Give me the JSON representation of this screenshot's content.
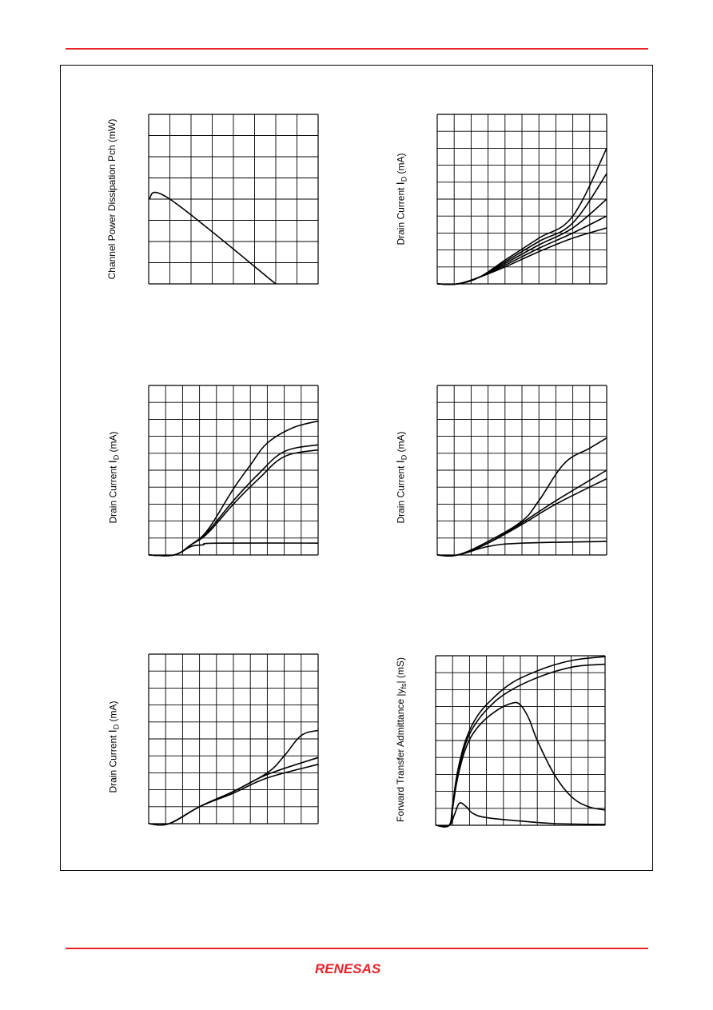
{
  "page": {
    "accent_color": "#e8232a",
    "logo_text": "RENESAS"
  },
  "chart_data": [
    {
      "id": "pch-derating",
      "type": "line",
      "ylabel": "Channel Power Dissipation Pch  (mW)",
      "xlim": [
        0,
        8
      ],
      "ylim": [
        0,
        8
      ],
      "grid": true,
      "grid_divisions": [
        8,
        8
      ],
      "series": [
        {
          "x": [
            0,
            1,
            6
          ],
          "y": [
            4,
            4,
            0
          ]
        }
      ]
    },
    {
      "id": "id-vds-1",
      "type": "line",
      "ylabel_prefix": "Drain Current  ",
      "ylabel_symbol": "I",
      "ylabel_sub": "D",
      "ylabel_suffix": " (mA)",
      "xlim": [
        0,
        10
      ],
      "ylim": [
        0,
        10
      ],
      "grid": true,
      "grid_divisions": [
        10,
        10
      ],
      "series": [
        {
          "x": [
            0,
            1.2,
            2.5,
            4,
            6,
            8,
            10
          ],
          "y": [
            0,
            0,
            0.4,
            1.0,
            1.9,
            2.7,
            3.3
          ]
        },
        {
          "x": [
            0,
            1.2,
            2.5,
            4,
            6,
            8,
            10
          ],
          "y": [
            0,
            0,
            0.4,
            1.1,
            2.1,
            3.0,
            4.0
          ]
        },
        {
          "x": [
            0,
            1.2,
            2.5,
            4,
            6,
            8,
            10
          ],
          "y": [
            0,
            0,
            0.4,
            1.2,
            2.3,
            3.3,
            5.0
          ]
        },
        {
          "x": [
            0,
            1.2,
            2.5,
            4,
            6,
            8,
            10
          ],
          "y": [
            0,
            0,
            0.4,
            1.3,
            2.5,
            3.6,
            6.5
          ]
        },
        {
          "x": [
            0,
            1.2,
            2.5,
            4,
            6,
            8,
            10
          ],
          "y": [
            0,
            0,
            0.4,
            1.4,
            2.7,
            4.0,
            8.0
          ]
        }
      ]
    },
    {
      "id": "id-vgs-1",
      "type": "line",
      "ylabel_prefix": "Drain Current  ",
      "ylabel_symbol": "I",
      "ylabel_sub": "D",
      "ylabel_suffix": " (mA)",
      "xlim": [
        0,
        10
      ],
      "ylim": [
        0,
        10
      ],
      "grid": true,
      "grid_divisions": [
        10,
        10
      ],
      "series": [
        {
          "x": [
            0,
            1.5,
            2.5,
            3.2,
            4,
            10
          ],
          "y": [
            0,
            0,
            0.5,
            0.6,
            0.7,
            0.7
          ]
        },
        {
          "x": [
            0,
            1.5,
            2.5,
            3.5,
            5,
            6.5,
            8,
            10
          ],
          "y": [
            0,
            0,
            0.6,
            1.3,
            3.0,
            4.5,
            5.8,
            6.2
          ]
        },
        {
          "x": [
            0,
            1.5,
            2.5,
            3.5,
            5,
            6.5,
            8,
            10
          ],
          "y": [
            0,
            0,
            0.6,
            1.4,
            3.2,
            4.8,
            6.1,
            6.5
          ]
        },
        {
          "x": [
            0,
            1.5,
            2.5,
            3.5,
            5,
            6,
            7,
            8.5,
            10
          ],
          "y": [
            0,
            0,
            0.6,
            1.5,
            3.9,
            5.3,
            6.6,
            7.5,
            7.9
          ]
        }
      ]
    },
    {
      "id": "id-vgs-2",
      "type": "line",
      "ylabel_prefix": "Drain Current  ",
      "ylabel_symbol": "I",
      "ylabel_sub": "D",
      "ylabel_suffix": " (mA)",
      "xlim": [
        0,
        10
      ],
      "ylim": [
        0,
        10
      ],
      "grid": true,
      "grid_divisions": [
        10,
        10
      ],
      "series": [
        {
          "x": [
            0,
            1.2,
            3,
            5,
            10
          ],
          "y": [
            0,
            0,
            0.5,
            0.7,
            0.8
          ]
        },
        {
          "x": [
            0,
            1.2,
            3,
            5,
            7,
            10
          ],
          "y": [
            0,
            0,
            0.7,
            1.8,
            3.0,
            4.5
          ]
        },
        {
          "x": [
            0,
            1.2,
            3,
            5,
            7,
            10
          ],
          "y": [
            0,
            0,
            0.7,
            1.9,
            3.2,
            5.0
          ]
        },
        {
          "x": [
            0,
            1.2,
            3,
            5,
            6,
            7.5,
            9,
            10
          ],
          "y": [
            0,
            0,
            0.8,
            2.0,
            3.2,
            5.4,
            6.3,
            6.9
          ]
        }
      ]
    },
    {
      "id": "id-vds-2",
      "type": "line",
      "ylabel_prefix": "Drain Current  ",
      "ylabel_symbol": "I",
      "ylabel_sub": "D",
      "ylabel_suffix": "  (mA)",
      "xlim": [
        0,
        10
      ],
      "ylim": [
        0,
        10
      ],
      "grid": true,
      "grid_divisions": [
        10,
        10
      ],
      "series": [
        {
          "x": [
            0,
            1.2,
            3,
            5,
            7,
            10
          ],
          "y": [
            0,
            0,
            1.0,
            1.8,
            2.7,
            3.5
          ]
        },
        {
          "x": [
            0,
            1.2,
            3,
            5,
            7,
            10
          ],
          "y": [
            0,
            0,
            1.0,
            1.9,
            2.9,
            3.9
          ]
        },
        {
          "x": [
            0,
            1.2,
            3,
            5,
            7,
            8,
            9,
            10
          ],
          "y": [
            0,
            0,
            1.0,
            1.9,
            3.0,
            4.0,
            5.2,
            5.5
          ]
        }
      ]
    },
    {
      "id": "yfs-vgs",
      "type": "line",
      "ylabel": "Forward Transfer Admittance |y",
      "ylabel_sub": "fs",
      "ylabel_suffix": "| (mS)",
      "xlim": [
        0,
        10
      ],
      "ylim": [
        0,
        10
      ],
      "grid": true,
      "grid_divisions": [
        10,
        10
      ],
      "series": [
        {
          "x": [
            0,
            0.8,
            1.1,
            1.4,
            1.8,
            2.2,
            3,
            5,
            7,
            10
          ],
          "y": [
            0,
            0,
            0.6,
            1.3,
            1.1,
            0.7,
            0.45,
            0.25,
            0.1,
            0.05
          ]
        },
        {
          "x": [
            0,
            0.8,
            1.0,
            1.3,
            1.8,
            2.5,
            3.5,
            4.5,
            5,
            5.5,
            6,
            7,
            8,
            9,
            10
          ],
          "y": [
            0,
            0,
            1.0,
            2.8,
            4.6,
            5.8,
            6.7,
            7.2,
            7.1,
            6.3,
            5.0,
            3.0,
            1.7,
            1.1,
            0.9
          ]
        },
        {
          "x": [
            0,
            0.8,
            1.0,
            1.3,
            1.8,
            2.5,
            3.5,
            4.5,
            5.5,
            6.5,
            7.5,
            8.5,
            10
          ],
          "y": [
            0,
            0,
            1.1,
            3.0,
            4.9,
            6.2,
            7.3,
            8.0,
            8.5,
            8.9,
            9.2,
            9.4,
            9.5
          ]
        },
        {
          "x": [
            0,
            0.8,
            1.0,
            1.3,
            1.8,
            2.5,
            3.5,
            4.5,
            5.5,
            6.5,
            7.5,
            8.5,
            10
          ],
          "y": [
            0,
            0,
            1.2,
            3.2,
            5.1,
            6.5,
            7.6,
            8.4,
            8.9,
            9.3,
            9.6,
            9.8,
            9.95
          ]
        }
      ]
    }
  ]
}
